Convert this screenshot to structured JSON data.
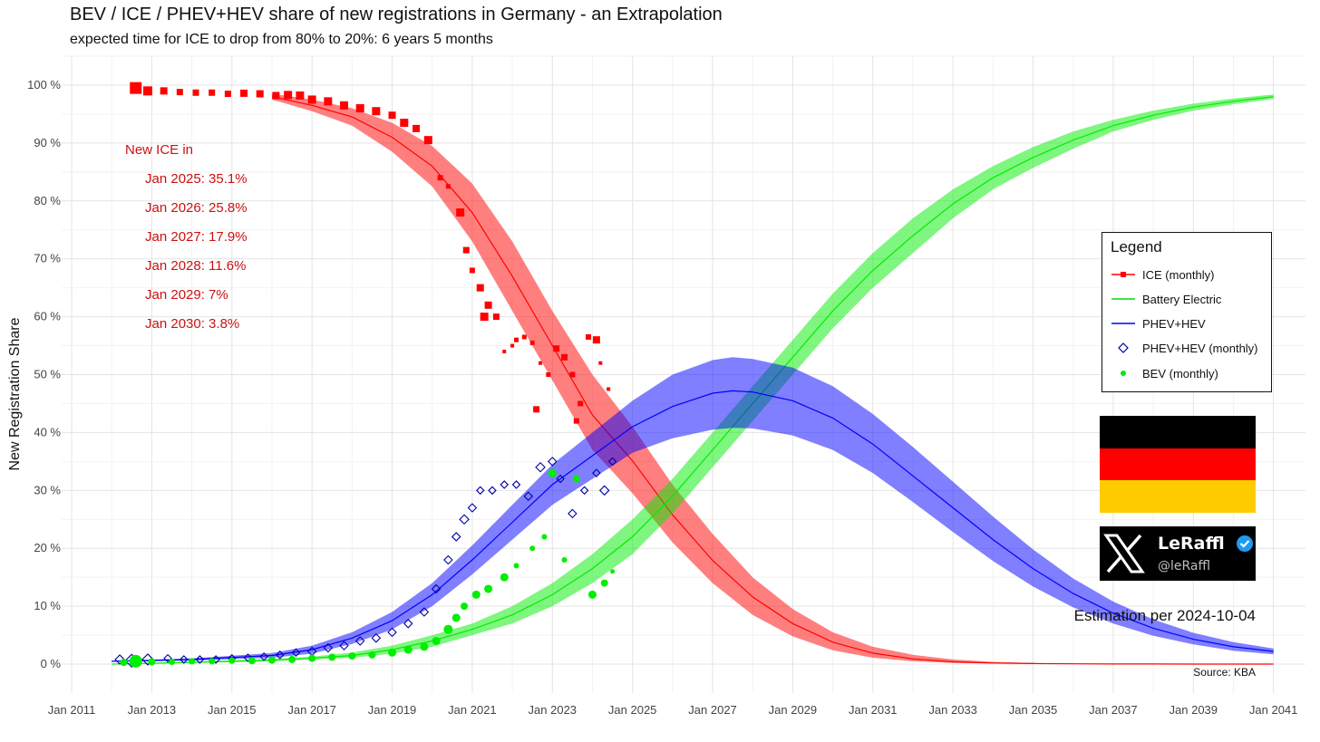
{
  "header": {
    "title": "BEV / ICE / PHEV+HEV share of new registrations in Germany - an Extrapolation",
    "subtitle": "expected time for ICE to drop from 80% to 20%: 6 years 5 months"
  },
  "annotation": {
    "heading": "New ICE in",
    "lines": [
      "Jan 2025: 35.1%",
      "Jan 2026: 25.8%",
      "Jan 2027: 17.9%",
      "Jan 2028: 11.6%",
      "Jan 2029: 7%",
      "Jan 2030: 3.8%"
    ]
  },
  "legend": {
    "title": "Legend",
    "items": [
      {
        "label": "ICE (monthly)",
        "color": "#ff0000",
        "icon": "line-square"
      },
      {
        "label": "Battery Electric",
        "color": "#00dd00",
        "icon": "line"
      },
      {
        "label": "PHEV+HEV",
        "color": "#0000ff",
        "icon": "line"
      },
      {
        "label": "PHEV+HEV (monthly)",
        "color": "#0000aa",
        "icon": "diamond"
      },
      {
        "label": "BEV (monthly)",
        "color": "#00ee00",
        "icon": "dot"
      }
    ]
  },
  "branding": {
    "name": "LeRaffl",
    "handle": "@leRaffl",
    "logo_icon": "x-logo-icon",
    "verified_icon": "verified-badge-icon"
  },
  "flag": {
    "colors": [
      "#000000",
      "#ff0000",
      "#ffcc00"
    ]
  },
  "estimation": "Estimation per 2024-10-04",
  "source": "Source: KBA",
  "chart_data": {
    "type": "line",
    "title": "BEV / ICE / PHEV+HEV share of new registrations in Germany - an Extrapolation",
    "subtitle": "expected time for ICE to drop from 80% to 20%: 6 years 5 months",
    "xlabel": "",
    "ylabel": "New Registration Share",
    "xlim": [
      2010.75,
      2041.8
    ],
    "ylim": [
      -0.05,
      1.05
    ],
    "x_ticks": [
      {
        "v": 2011,
        "label": "Jan 2011"
      },
      {
        "v": 2013,
        "label": "Jan 2013"
      },
      {
        "v": 2015,
        "label": "Jan 2015"
      },
      {
        "v": 2017,
        "label": "Jan 2017"
      },
      {
        "v": 2019,
        "label": "Jan 2019"
      },
      {
        "v": 2021,
        "label": "Jan 2021"
      },
      {
        "v": 2023,
        "label": "Jan 2023"
      },
      {
        "v": 2025,
        "label": "Jan 2025"
      },
      {
        "v": 2027,
        "label": "Jan 2027"
      },
      {
        "v": 2029,
        "label": "Jan 2029"
      },
      {
        "v": 2031,
        "label": "Jan 2031"
      },
      {
        "v": 2033,
        "label": "Jan 2033"
      },
      {
        "v": 2035,
        "label": "Jan 2035"
      },
      {
        "v": 2037,
        "label": "Jan 2037"
      },
      {
        "v": 2039,
        "label": "Jan 2039"
      },
      {
        "v": 2041,
        "label": "Jan 2041"
      }
    ],
    "y_ticks": [
      {
        "v": 0,
        "label": "0 %"
      },
      {
        "v": 0.1,
        "label": "10 %"
      },
      {
        "v": 0.2,
        "label": "20 %"
      },
      {
        "v": 0.3,
        "label": "30 %"
      },
      {
        "v": 0.4,
        "label": "40 %"
      },
      {
        "v": 0.5,
        "label": "50 %"
      },
      {
        "v": 0.6,
        "label": "60 %"
      },
      {
        "v": 0.7,
        "label": "70 %"
      },
      {
        "v": 0.8,
        "label": "80 %"
      },
      {
        "v": 0.9,
        "label": "90 %"
      },
      {
        "v": 1.0,
        "label": "100 %"
      }
    ],
    "grid": true,
    "legend_position": "right",
    "series": [
      {
        "name": "ICE",
        "kind": "band",
        "color": "#ff0000",
        "fill_opacity": 0.5,
        "x": [
          2016,
          2017,
          2018,
          2019,
          2020,
          2021,
          2022,
          2023,
          2024,
          2025,
          2026,
          2027,
          2028,
          2029,
          2030,
          2031,
          2032,
          2033,
          2034,
          2035,
          2036,
          2037,
          2038,
          2039,
          2040,
          2041
        ],
        "y": [
          0.98,
          0.965,
          0.945,
          0.91,
          0.86,
          0.78,
          0.67,
          0.55,
          0.43,
          0.351,
          0.258,
          0.179,
          0.116,
          0.07,
          0.038,
          0.019,
          0.009,
          0.004,
          0.002,
          0.001,
          0.0005,
          0.0003,
          0.0002,
          0.0001,
          0.0001,
          0.0
        ],
        "upper": [
          0.985,
          0.975,
          0.96,
          0.935,
          0.895,
          0.83,
          0.73,
          0.61,
          0.5,
          0.41,
          0.31,
          0.225,
          0.15,
          0.095,
          0.055,
          0.03,
          0.016,
          0.008,
          0.004,
          0.002,
          0.001,
          0.0005,
          0.0003,
          0.0002,
          0.0001,
          0.0
        ],
        "lower": [
          0.975,
          0.955,
          0.93,
          0.885,
          0.825,
          0.73,
          0.61,
          0.49,
          0.37,
          0.295,
          0.21,
          0.14,
          0.085,
          0.048,
          0.024,
          0.011,
          0.005,
          0.002,
          0.001,
          0.0005,
          0.0002,
          0.0001,
          0.0,
          0.0,
          0.0,
          0.0
        ]
      },
      {
        "name": "Battery Electric",
        "kind": "band",
        "color": "#00ee00",
        "fill_opacity": 0.5,
        "x": [
          2012,
          2014,
          2016,
          2017,
          2018,
          2019,
          2020,
          2021,
          2022,
          2023,
          2024,
          2025,
          2026,
          2027,
          2028,
          2029,
          2030,
          2031,
          2032,
          2033,
          2034,
          2035,
          2036,
          2037,
          2038,
          2039,
          2040,
          2041
        ],
        "y": [
          0.0,
          0.003,
          0.007,
          0.01,
          0.015,
          0.025,
          0.04,
          0.06,
          0.085,
          0.12,
          0.165,
          0.22,
          0.29,
          0.37,
          0.45,
          0.53,
          0.61,
          0.68,
          0.74,
          0.795,
          0.84,
          0.875,
          0.905,
          0.93,
          0.948,
          0.962,
          0.972,
          0.98
        ],
        "upper": [
          0.0,
          0.004,
          0.009,
          0.013,
          0.02,
          0.032,
          0.05,
          0.07,
          0.1,
          0.14,
          0.19,
          0.25,
          0.32,
          0.4,
          0.48,
          0.56,
          0.64,
          0.71,
          0.77,
          0.82,
          0.86,
          0.893,
          0.92,
          0.94,
          0.956,
          0.968,
          0.977,
          0.984
        ],
        "lower": [
          0.0,
          0.002,
          0.005,
          0.008,
          0.011,
          0.018,
          0.03,
          0.05,
          0.07,
          0.1,
          0.14,
          0.19,
          0.26,
          0.34,
          0.42,
          0.5,
          0.58,
          0.65,
          0.71,
          0.77,
          0.82,
          0.857,
          0.89,
          0.92,
          0.94,
          0.956,
          0.967,
          0.976
        ]
      },
      {
        "name": "PHEV+HEV",
        "kind": "band",
        "color": "#0000ff",
        "fill_opacity": 0.5,
        "x": [
          2012,
          2014,
          2016,
          2017,
          2018,
          2019,
          2020,
          2021,
          2022,
          2023,
          2024,
          2025,
          2026,
          2027,
          2027.5,
          2028,
          2029,
          2030,
          2031,
          2032,
          2033,
          2034,
          2035,
          2036,
          2037,
          2038,
          2039,
          2040,
          2041
        ],
        "y": [
          0.005,
          0.008,
          0.015,
          0.025,
          0.045,
          0.075,
          0.12,
          0.18,
          0.245,
          0.31,
          0.36,
          0.41,
          0.445,
          0.468,
          0.472,
          0.47,
          0.455,
          0.425,
          0.38,
          0.325,
          0.27,
          0.215,
          0.165,
          0.122,
          0.088,
          0.062,
          0.043,
          0.03,
          0.022
        ],
        "upper": [
          0.006,
          0.01,
          0.019,
          0.032,
          0.055,
          0.09,
          0.14,
          0.205,
          0.275,
          0.345,
          0.4,
          0.455,
          0.5,
          0.525,
          0.53,
          0.527,
          0.512,
          0.48,
          0.432,
          0.375,
          0.315,
          0.255,
          0.198,
          0.148,
          0.108,
          0.077,
          0.054,
          0.038,
          0.027
        ],
        "lower": [
          0.004,
          0.006,
          0.011,
          0.018,
          0.035,
          0.06,
          0.1,
          0.155,
          0.215,
          0.275,
          0.32,
          0.365,
          0.39,
          0.405,
          0.408,
          0.407,
          0.395,
          0.37,
          0.33,
          0.28,
          0.228,
          0.178,
          0.134,
          0.098,
          0.07,
          0.049,
          0.034,
          0.023,
          0.017
        ]
      },
      {
        "name": "ICE (monthly)",
        "kind": "squares",
        "color": "#ff0000",
        "points": [
          [
            2012.6,
            0.995,
            13
          ],
          [
            2012.9,
            0.99,
            10
          ],
          [
            2013.3,
            0.99,
            8
          ],
          [
            2013.7,
            0.988,
            7
          ],
          [
            2014.1,
            0.987,
            7
          ],
          [
            2014.5,
            0.987,
            7
          ],
          [
            2014.9,
            0.985,
            7
          ],
          [
            2015.3,
            0.986,
            8
          ],
          [
            2015.7,
            0.985,
            8
          ],
          [
            2016.1,
            0.982,
            8
          ],
          [
            2016.4,
            0.983,
            9
          ],
          [
            2016.7,
            0.982,
            9
          ],
          [
            2017.0,
            0.975,
            9
          ],
          [
            2017.4,
            0.972,
            9
          ],
          [
            2017.8,
            0.965,
            9
          ],
          [
            2018.2,
            0.96,
            9
          ],
          [
            2018.6,
            0.955,
            9
          ],
          [
            2019.0,
            0.948,
            8
          ],
          [
            2019.3,
            0.935,
            9
          ],
          [
            2019.6,
            0.925,
            8
          ],
          [
            2019.9,
            0.905,
            9
          ],
          [
            2020.2,
            0.84,
            6
          ],
          [
            2020.4,
            0.825,
            5
          ],
          [
            2020.7,
            0.78,
            9
          ],
          [
            2020.85,
            0.715,
            7
          ],
          [
            2021.0,
            0.68,
            6
          ],
          [
            2021.2,
            0.65,
            8
          ],
          [
            2021.4,
            0.62,
            8
          ],
          [
            2021.6,
            0.6,
            7
          ],
          [
            2021.3,
            0.6,
            9
          ],
          [
            2021.8,
            0.54,
            4
          ],
          [
            2022.0,
            0.55,
            4
          ],
          [
            2022.1,
            0.56,
            5
          ],
          [
            2022.3,
            0.565,
            5
          ],
          [
            2022.5,
            0.555,
            5
          ],
          [
            2022.7,
            0.52,
            4
          ],
          [
            2022.9,
            0.5,
            5
          ],
          [
            2022.6,
            0.44,
            7
          ],
          [
            2023.1,
            0.545,
            7
          ],
          [
            2023.3,
            0.53,
            7
          ],
          [
            2023.5,
            0.5,
            6
          ],
          [
            2023.7,
            0.45,
            6
          ],
          [
            2023.6,
            0.42,
            6
          ],
          [
            2023.9,
            0.565,
            6
          ],
          [
            2024.1,
            0.56,
            8
          ],
          [
            2024.2,
            0.52,
            4
          ],
          [
            2024.4,
            0.475,
            4
          ]
        ]
      },
      {
        "name": "PHEV+HEV (monthly)",
        "kind": "diamonds",
        "color": "#0000aa",
        "points": [
          [
            2012.2,
            0.008,
            10
          ],
          [
            2012.5,
            0.006,
            14
          ],
          [
            2012.9,
            0.008,
            12
          ],
          [
            2013.4,
            0.01,
            8
          ],
          [
            2013.8,
            0.008,
            8
          ],
          [
            2014.2,
            0.008,
            8
          ],
          [
            2014.6,
            0.008,
            8
          ],
          [
            2015.0,
            0.01,
            8
          ],
          [
            2015.4,
            0.011,
            8
          ],
          [
            2015.8,
            0.013,
            8
          ],
          [
            2016.2,
            0.016,
            8
          ],
          [
            2016.6,
            0.02,
            8
          ],
          [
            2017.0,
            0.022,
            9
          ],
          [
            2017.4,
            0.028,
            9
          ],
          [
            2017.8,
            0.032,
            9
          ],
          [
            2018.2,
            0.04,
            9
          ],
          [
            2018.6,
            0.045,
            9
          ],
          [
            2019.0,
            0.055,
            9
          ],
          [
            2019.4,
            0.07,
            9
          ],
          [
            2019.8,
            0.09,
            9
          ],
          [
            2020.1,
            0.13,
            9
          ],
          [
            2020.4,
            0.18,
            9
          ],
          [
            2020.6,
            0.22,
            9
          ],
          [
            2020.8,
            0.25,
            10
          ],
          [
            2021.0,
            0.27,
            9
          ],
          [
            2021.2,
            0.3,
            8
          ],
          [
            2021.5,
            0.3,
            8
          ],
          [
            2021.8,
            0.31,
            8
          ],
          [
            2022.1,
            0.31,
            8
          ],
          [
            2022.4,
            0.29,
            9
          ],
          [
            2022.7,
            0.34,
            10
          ],
          [
            2023.0,
            0.35,
            9
          ],
          [
            2023.2,
            0.32,
            8
          ],
          [
            2023.5,
            0.26,
            9
          ],
          [
            2023.8,
            0.3,
            8
          ],
          [
            2024.1,
            0.33,
            8
          ],
          [
            2024.3,
            0.3,
            10
          ],
          [
            2024.5,
            0.35,
            8
          ]
        ]
      },
      {
        "name": "BEV (monthly)",
        "kind": "dots",
        "color": "#00ee00",
        "points": [
          [
            2012.3,
            0.003,
            8
          ],
          [
            2012.6,
            0.005,
            14
          ],
          [
            2013.0,
            0.004,
            8
          ],
          [
            2013.5,
            0.004,
            7
          ],
          [
            2014.0,
            0.005,
            7
          ],
          [
            2014.5,
            0.005,
            7
          ],
          [
            2015.0,
            0.006,
            7
          ],
          [
            2015.5,
            0.006,
            8
          ],
          [
            2016.0,
            0.007,
            8
          ],
          [
            2016.5,
            0.008,
            8
          ],
          [
            2017.0,
            0.01,
            8
          ],
          [
            2017.5,
            0.012,
            8
          ],
          [
            2018.0,
            0.014,
            8
          ],
          [
            2018.5,
            0.016,
            8
          ],
          [
            2019.0,
            0.02,
            9
          ],
          [
            2019.4,
            0.025,
            9
          ],
          [
            2019.8,
            0.03,
            9
          ],
          [
            2020.1,
            0.04,
            9
          ],
          [
            2020.4,
            0.06,
            10
          ],
          [
            2020.6,
            0.08,
            9
          ],
          [
            2020.8,
            0.1,
            8
          ],
          [
            2021.1,
            0.12,
            9
          ],
          [
            2021.4,
            0.13,
            9
          ],
          [
            2021.8,
            0.15,
            9
          ],
          [
            2022.1,
            0.17,
            6
          ],
          [
            2022.5,
            0.2,
            6
          ],
          [
            2022.8,
            0.22,
            6
          ],
          [
            2023.0,
            0.33,
            9
          ],
          [
            2023.3,
            0.18,
            6
          ],
          [
            2023.6,
            0.32,
            8
          ],
          [
            2024.0,
            0.12,
            9
          ],
          [
            2024.3,
            0.14,
            8
          ],
          [
            2024.5,
            0.16,
            5
          ]
        ]
      }
    ]
  }
}
